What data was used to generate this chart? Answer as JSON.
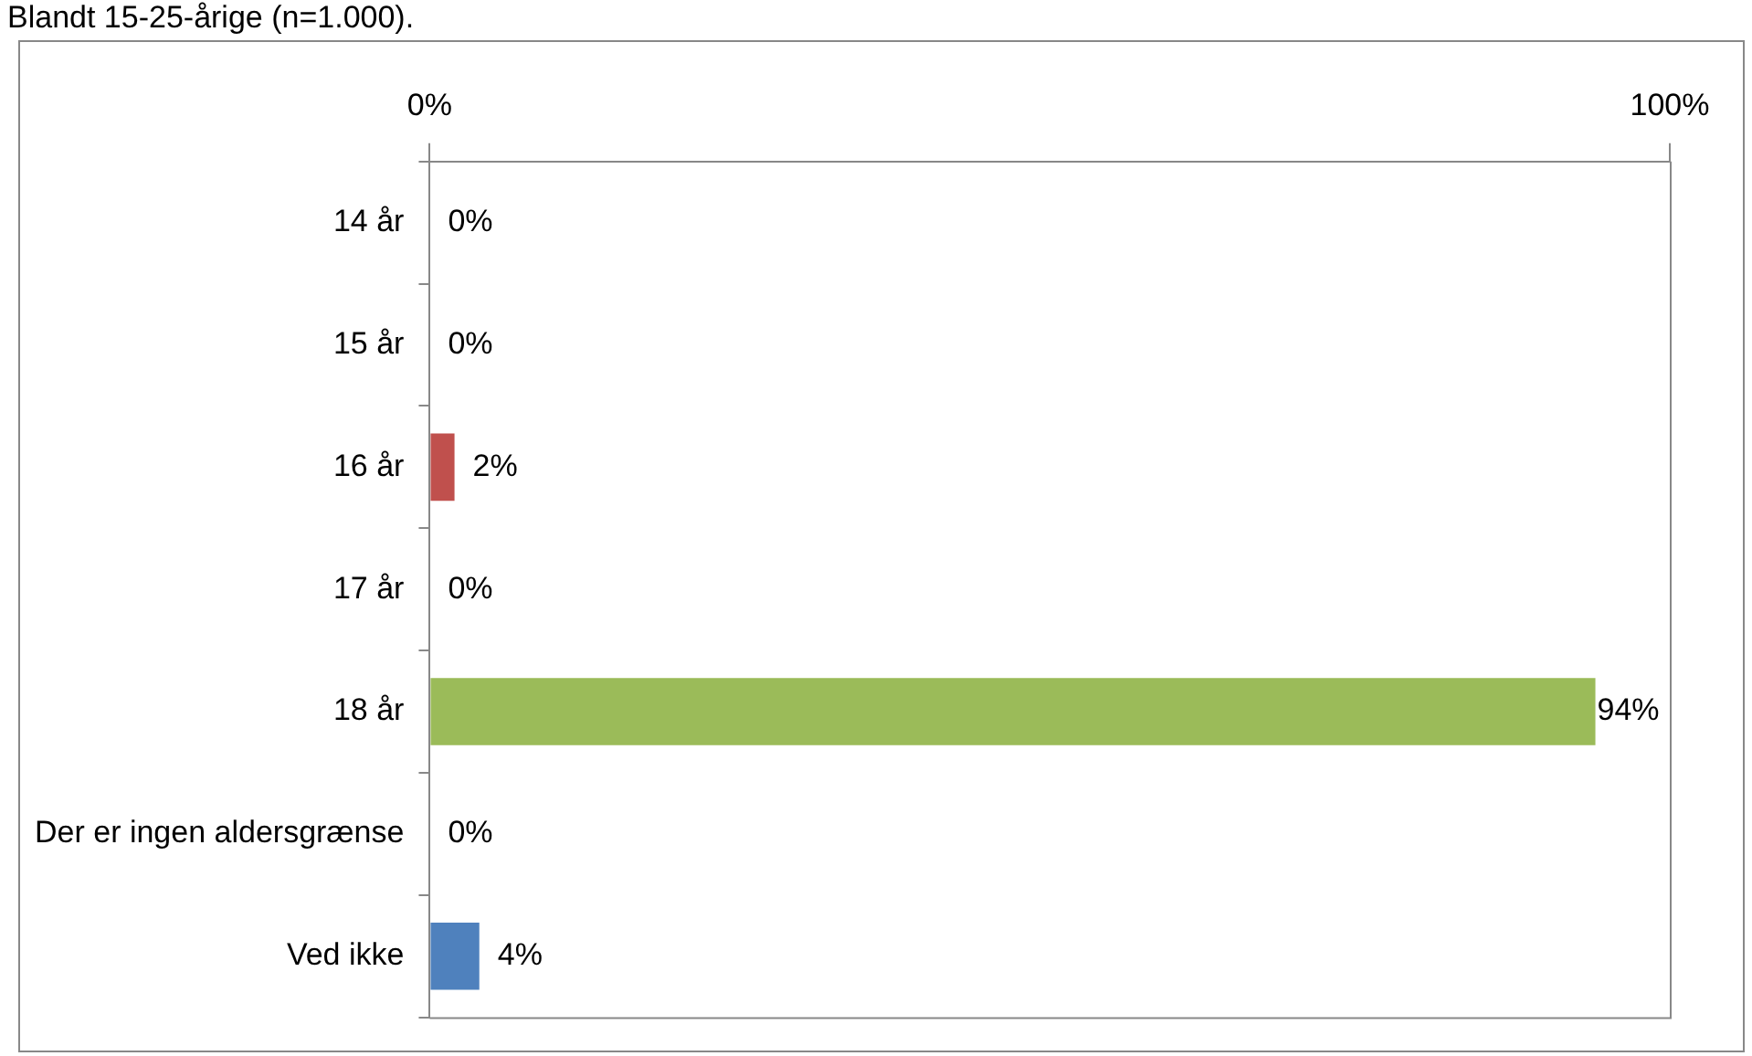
{
  "chart_data": {
    "type": "bar",
    "orientation": "horizontal",
    "title": "Blandt 15-25-årige (n=1.000).",
    "categories": [
      "14 år",
      "15 år",
      "16 år",
      "17 år",
      "18 år",
      "Der er ingen aldersgrænse",
      "Ved ikke"
    ],
    "values": [
      0,
      0,
      2,
      0,
      94,
      0,
      4
    ],
    "colors": [
      "#4f81bd",
      "#4f81bd",
      "#c0504d",
      "#4f81bd",
      "#9bbb59",
      "#4f81bd",
      "#4f81bd"
    ],
    "value_labels": [
      "0%",
      "0%",
      "2%",
      "0%",
      "94%",
      "0%",
      "4%"
    ],
    "xlim": [
      0,
      100
    ],
    "xticks": [
      {
        "value": 0,
        "label": "0%"
      },
      {
        "value": 100,
        "label": "100%"
      }
    ]
  }
}
